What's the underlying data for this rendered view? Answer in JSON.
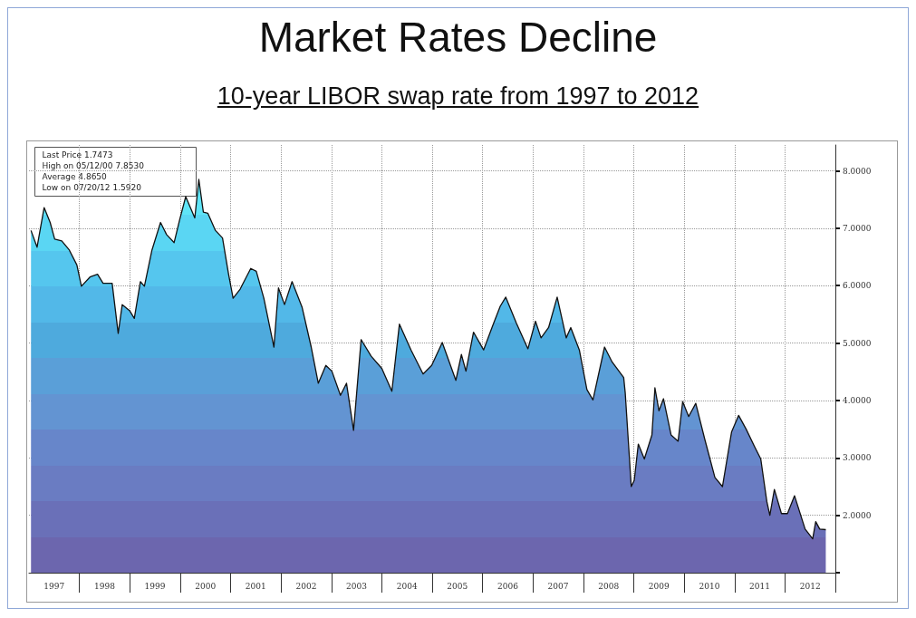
{
  "chart_data": {
    "type": "area",
    "title": "Market Rates Decline",
    "subtitle": "10-year LIBOR swap rate from 1997 to 2012",
    "annotations": [
      "Last Price 1.7473",
      "High on 05/12/00 7.8530",
      "Average 4.8650",
      "Low on 07/20/12 1.5920"
    ],
    "xlim": [
      1997,
      2013
    ],
    "xticks": [
      {
        "value": 1997.5,
        "label": "1997"
      },
      {
        "value": 1998,
        "label": null
      },
      {
        "value": 1998.5,
        "label": "1998"
      },
      {
        "value": 1999,
        "label": null
      },
      {
        "value": 1999.5,
        "label": "1999"
      },
      {
        "value": 2000,
        "label": null
      },
      {
        "value": 2000.5,
        "label": "2000"
      },
      {
        "value": 2001,
        "label": null
      },
      {
        "value": 2001.5,
        "label": "2001"
      },
      {
        "value": 2002,
        "label": null
      },
      {
        "value": 2002.5,
        "label": "2002"
      },
      {
        "value": 2003,
        "label": null
      },
      {
        "value": 2003.5,
        "label": "2003"
      },
      {
        "value": 2004,
        "label": null
      },
      {
        "value": 2004.5,
        "label": "2004"
      },
      {
        "value": 2005,
        "label": null
      },
      {
        "value": 2005.5,
        "label": "2005"
      },
      {
        "value": 2006,
        "label": null
      },
      {
        "value": 2006.5,
        "label": "2006"
      },
      {
        "value": 2007,
        "label": null
      },
      {
        "value": 2007.5,
        "label": "2007"
      },
      {
        "value": 2008,
        "label": null
      },
      {
        "value": 2008.5,
        "label": "2008"
      },
      {
        "value": 2009,
        "label": null
      },
      {
        "value": 2009.5,
        "label": "2009"
      },
      {
        "value": 2010,
        "label": null
      },
      {
        "value": 2010.5,
        "label": "2010"
      },
      {
        "value": 2011,
        "label": null
      },
      {
        "value": 2011.5,
        "label": "2011"
      },
      {
        "value": 2012,
        "label": null
      },
      {
        "value": 2012.5,
        "label": "2012"
      },
      {
        "value": 2013,
        "label": null
      }
    ],
    "ylim": [
      1,
      8.45
    ],
    "yticks": [
      {
        "value": 1,
        "label": null
      },
      {
        "value": 2,
        "label": "2.0000"
      },
      {
        "value": 3,
        "label": "3.0000"
      },
      {
        "value": 4,
        "label": "4.0000"
      },
      {
        "value": 5,
        "label": "5.0000"
      },
      {
        "value": 6,
        "label": "6.0000"
      },
      {
        "value": 7,
        "label": "7.0000"
      },
      {
        "value": 8,
        "label": "8.0000"
      }
    ],
    "grid": true,
    "series": [
      {
        "color": "#111111",
        "x": [
          1997.04,
          1997.16,
          1997.3,
          1997.42,
          1997.51,
          1997.65,
          1997.8,
          1997.95,
          1998.04,
          1998.21,
          1998.36,
          1998.47,
          1998.65,
          1998.77,
          1998.85,
          1999.0,
          1999.09,
          1999.21,
          1999.29,
          1999.44,
          1999.61,
          1999.73,
          1999.88,
          1999.99,
          2000.11,
          2000.29,
          2000.37,
          2000.46,
          2000.55,
          2000.7,
          2000.84,
          2000.96,
          2001.05,
          2001.19,
          2001.4,
          2001.51,
          2001.66,
          2001.86,
          2001.95,
          2002.07,
          2002.22,
          2002.42,
          2002.6,
          2002.74,
          2002.89,
          2003.01,
          2003.18,
          2003.3,
          2003.44,
          2003.59,
          2003.79,
          2004.0,
          2004.2,
          2004.35,
          2004.58,
          2004.82,
          2004.99,
          2005.2,
          2005.47,
          2005.58,
          2005.67,
          2005.82,
          2006.02,
          2006.2,
          2006.35,
          2006.46,
          2006.67,
          2006.9,
          2007.05,
          2007.16,
          2007.31,
          2007.48,
          2007.66,
          2007.75,
          2007.92,
          2008.07,
          2008.19,
          2008.42,
          2008.57,
          2008.8,
          2008.83,
          2008.95,
          2009.01,
          2009.09,
          2009.21,
          2009.36,
          2009.42,
          2009.5,
          2009.59,
          2009.74,
          2009.88,
          2009.97,
          2010.09,
          2010.23,
          2010.41,
          2010.61,
          2010.76,
          2010.94,
          2011.08,
          2011.23,
          2011.4,
          2011.52,
          2011.64,
          2011.7,
          2011.79,
          2011.93,
          2012.05,
          2012.19,
          2012.4,
          2012.55,
          2012.61,
          2012.69,
          2012.81
        ],
        "values": [
          6.96,
          6.67,
          7.36,
          7.1,
          6.81,
          6.78,
          6.62,
          6.36,
          5.99,
          6.15,
          6.2,
          6.04,
          6.04,
          5.17,
          5.67,
          5.56,
          5.43,
          6.07,
          5.99,
          6.62,
          7.1,
          6.89,
          6.75,
          7.15,
          7.55,
          7.18,
          7.85,
          7.28,
          7.26,
          6.96,
          6.83,
          6.2,
          5.78,
          5.94,
          6.3,
          6.25,
          5.78,
          4.93,
          5.96,
          5.67,
          6.07,
          5.62,
          4.93,
          4.3,
          4.61,
          4.51,
          4.09,
          4.3,
          3.48,
          5.06,
          4.77,
          4.56,
          4.16,
          5.33,
          4.88,
          4.46,
          4.61,
          5.01,
          4.35,
          4.8,
          4.51,
          5.19,
          4.88,
          5.3,
          5.64,
          5.8,
          5.35,
          4.9,
          5.38,
          5.09,
          5.27,
          5.8,
          5.09,
          5.27,
          4.88,
          4.19,
          4.01,
          4.93,
          4.67,
          4.4,
          4.14,
          2.5,
          2.61,
          3.24,
          2.98,
          3.4,
          4.22,
          3.82,
          4.03,
          3.4,
          3.29,
          3.98,
          3.72,
          3.95,
          3.32,
          2.66,
          2.5,
          3.45,
          3.74,
          3.5,
          3.19,
          2.98,
          2.24,
          2.0,
          2.45,
          2.03,
          2.03,
          2.34,
          1.76,
          1.59,
          1.89,
          1.76,
          1.75
        ]
      }
    ]
  }
}
